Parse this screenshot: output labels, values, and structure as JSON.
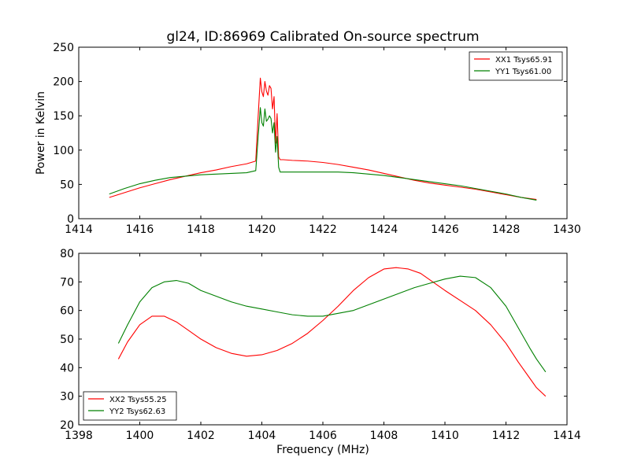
{
  "chart_data": [
    {
      "type": "line",
      "title": "gl24, ID:86969 Calibrated On-source spectrum",
      "xlabel": "",
      "ylabel": "Power in Kelvin",
      "xlim": [
        1414,
        1430
      ],
      "ylim": [
        0,
        250
      ],
      "xticks": [
        1414,
        1416,
        1418,
        1420,
        1422,
        1424,
        1426,
        1428,
        1430
      ],
      "yticks": [
        0,
        50,
        100,
        150,
        200,
        250
      ],
      "grid": false,
      "legend_position": "top-right",
      "series": [
        {
          "name": "XX1 Tsys65.91",
          "color": "#ff0000",
          "x": [
            1415.0,
            1415.5,
            1416.0,
            1416.5,
            1417.0,
            1417.5,
            1418.0,
            1418.5,
            1419.0,
            1419.5,
            1419.8,
            1419.88,
            1419.95,
            1420.0,
            1420.05,
            1420.1,
            1420.15,
            1420.2,
            1420.25,
            1420.3,
            1420.35,
            1420.4,
            1420.45,
            1420.5,
            1420.55,
            1420.6,
            1420.7,
            1421.0,
            1421.5,
            1422.0,
            1422.5,
            1423.0,
            1423.5,
            1424.0,
            1424.5,
            1425.0,
            1425.5,
            1426.0,
            1426.5,
            1427.0,
            1427.5,
            1428.0,
            1428.5,
            1429.0
          ],
          "y": [
            31,
            38,
            45,
            51,
            57,
            62,
            67,
            71,
            76,
            80,
            84,
            150,
            205,
            185,
            178,
            200,
            186,
            180,
            194,
            190,
            160,
            178,
            110,
            153,
            90,
            86,
            86,
            85,
            84,
            82,
            79,
            75,
            71,
            66,
            61,
            56,
            52,
            49,
            46,
            43,
            39,
            35,
            31,
            28
          ]
        },
        {
          "name": "YY1 Tsys61.00",
          "color": "#008000",
          "x": [
            1415.0,
            1415.5,
            1416.0,
            1416.5,
            1417.0,
            1417.5,
            1418.0,
            1418.5,
            1419.0,
            1419.5,
            1419.8,
            1419.88,
            1419.95,
            1420.0,
            1420.05,
            1420.1,
            1420.15,
            1420.2,
            1420.25,
            1420.3,
            1420.35,
            1420.4,
            1420.45,
            1420.5,
            1420.55,
            1420.6,
            1420.7,
            1421.0,
            1421.5,
            1422.0,
            1422.5,
            1423.0,
            1423.5,
            1424.0,
            1424.5,
            1425.0,
            1425.5,
            1426.0,
            1426.5,
            1427.0,
            1427.5,
            1428.0,
            1428.5,
            1429.0
          ],
          "y": [
            36,
            44,
            51,
            56,
            60,
            62,
            64,
            65,
            66,
            67,
            70,
            120,
            162,
            140,
            135,
            160,
            142,
            145,
            150,
            146,
            125,
            140,
            97,
            120,
            75,
            68,
            68,
            68,
            68,
            68,
            68,
            67,
            65,
            63,
            60,
            57,
            54,
            51,
            48,
            44,
            40,
            36,
            31,
            27
          ]
        }
      ]
    },
    {
      "type": "line",
      "title": "",
      "xlabel": "Frequency (MHz)",
      "ylabel": "",
      "xlim": [
        1398,
        1414
      ],
      "ylim": [
        20,
        80
      ],
      "xticks": [
        1398,
        1400,
        1402,
        1404,
        1406,
        1408,
        1410,
        1412,
        1414
      ],
      "yticks": [
        20,
        30,
        40,
        50,
        60,
        70,
        80
      ],
      "grid": false,
      "legend_position": "bottom-left",
      "series": [
        {
          "name": "XX2 Tsys55.25",
          "color": "#ff0000",
          "x": [
            1399.3,
            1399.6,
            1400.0,
            1400.4,
            1400.8,
            1401.2,
            1401.6,
            1402.0,
            1402.5,
            1403.0,
            1403.5,
            1404.0,
            1404.5,
            1405.0,
            1405.5,
            1406.0,
            1406.5,
            1407.0,
            1407.5,
            1408.0,
            1408.4,
            1408.8,
            1409.2,
            1409.6,
            1410.0,
            1410.5,
            1411.0,
            1411.5,
            1412.0,
            1412.4,
            1412.8,
            1413.0,
            1413.3
          ],
          "y": [
            43,
            49,
            55,
            58,
            58,
            56,
            53,
            50,
            47,
            45,
            44,
            44.5,
            46,
            48.5,
            52,
            56.5,
            61.5,
            67,
            71.5,
            74.5,
            75,
            74.5,
            73,
            70,
            67,
            63.5,
            60,
            55,
            48.5,
            42,
            36,
            33,
            30
          ]
        },
        {
          "name": "YY2 Tsys62.63",
          "color": "#008000",
          "x": [
            1399.3,
            1399.6,
            1400.0,
            1400.4,
            1400.8,
            1401.2,
            1401.6,
            1402.0,
            1402.5,
            1403.0,
            1403.5,
            1404.0,
            1404.5,
            1405.0,
            1405.5,
            1406.0,
            1406.5,
            1407.0,
            1407.5,
            1408.0,
            1408.5,
            1409.0,
            1409.5,
            1410.0,
            1410.5,
            1411.0,
            1411.5,
            1412.0,
            1412.4,
            1412.8,
            1413.0,
            1413.3
          ],
          "y": [
            48.5,
            55,
            63,
            68,
            70,
            70.5,
            69.5,
            67,
            65,
            63,
            61.5,
            60.5,
            59.5,
            58.5,
            58,
            58,
            59,
            60,
            62,
            64,
            66,
            68,
            69.5,
            71,
            72,
            71.5,
            68,
            61.5,
            54,
            46.5,
            43,
            38.5
          ]
        }
      ]
    }
  ]
}
